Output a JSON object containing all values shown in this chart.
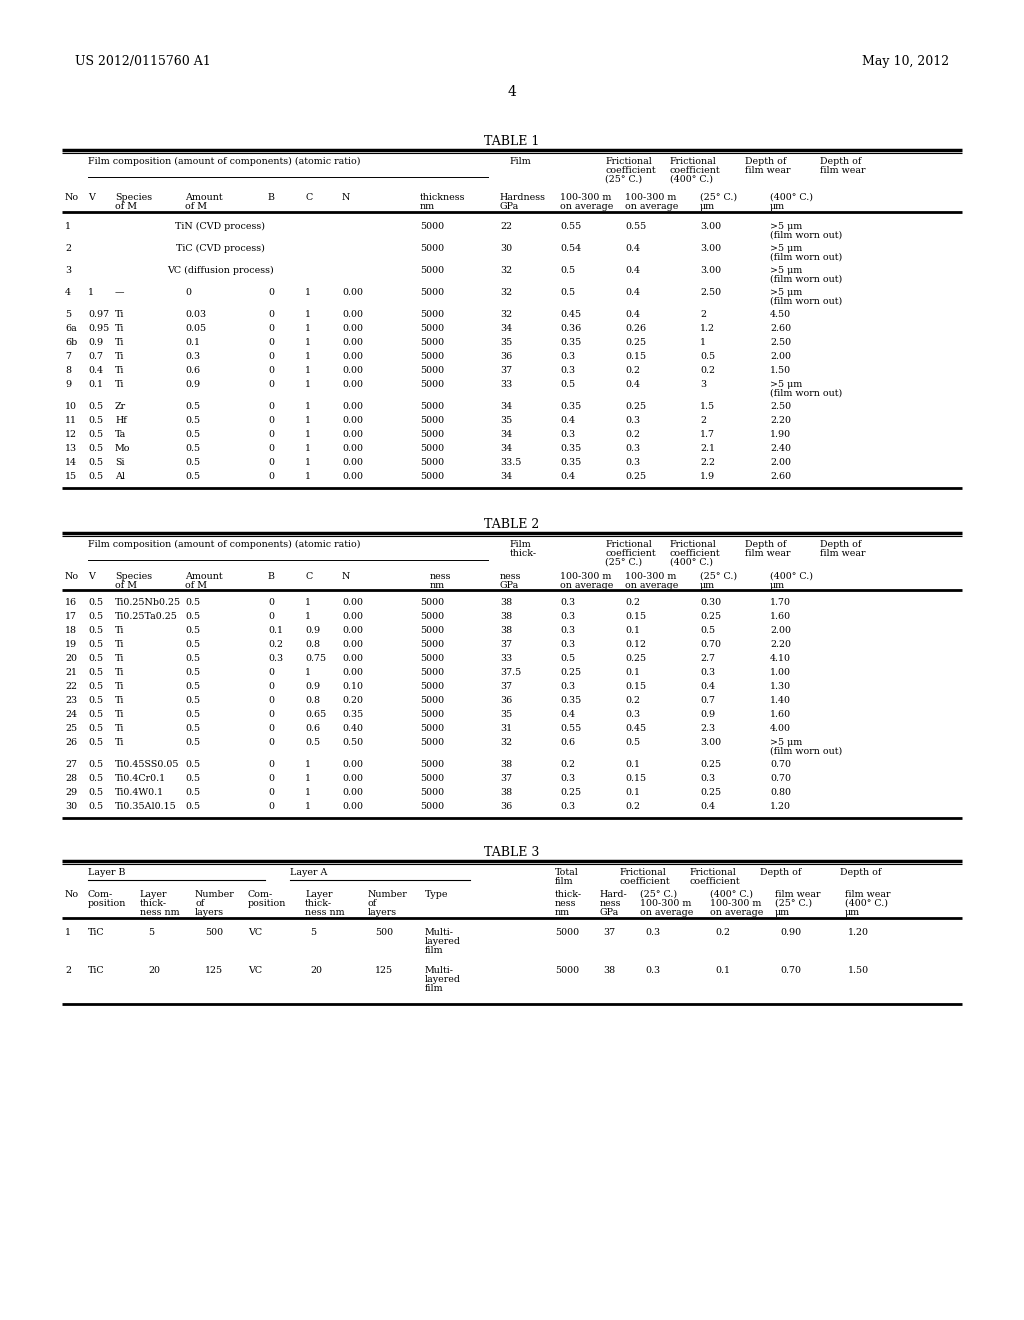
{
  "header_left": "US 2012/0115760 A1",
  "header_right": "May 10, 2012",
  "page_number": "4",
  "background_color": "#ffffff",
  "table1_title": "TABLE 1",
  "table2_title": "TABLE 2",
  "table3_title": "TABLE 3",
  "table1_rows": [
    [
      "1",
      "",
      "TiN (CVD process)",
      "",
      "",
      "",
      "",
      "5000",
      "22",
      "0.55",
      "0.55",
      "3.00",
      ">5 μm",
      "(film worn out)"
    ],
    [
      "2",
      "",
      "TiC (CVD process)",
      "",
      "",
      "",
      "",
      "5000",
      "30",
      "0.54",
      "0.4",
      "3.00",
      ">5 μm",
      "(film worn out)"
    ],
    [
      "3",
      "",
      "VC (diffusion process)",
      "",
      "",
      "",
      "",
      "5000",
      "32",
      "0.5",
      "0.4",
      "3.00",
      ">5 μm",
      "(film worn out)"
    ],
    [
      "4",
      "1",
      "—",
      "0",
      "0",
      "1",
      "0.00",
      "5000",
      "32",
      "0.5",
      "0.4",
      "2.50",
      ">5 μm",
      "(film worn out)"
    ],
    [
      "5",
      "0.97",
      "Ti",
      "0.03",
      "0",
      "1",
      "0.00",
      "5000",
      "32",
      "0.45",
      "0.4",
      "2",
      "4.50",
      ""
    ],
    [
      "6a",
      "0.95",
      "Ti",
      "0.05",
      "0",
      "1",
      "0.00",
      "5000",
      "34",
      "0.36",
      "0.26",
      "1.2",
      "2.60",
      ""
    ],
    [
      "6b",
      "0.9",
      "Ti",
      "0.1",
      "0",
      "1",
      "0.00",
      "5000",
      "35",
      "0.35",
      "0.25",
      "1",
      "2.50",
      ""
    ],
    [
      "7",
      "0.7",
      "Ti",
      "0.3",
      "0",
      "1",
      "0.00",
      "5000",
      "36",
      "0.3",
      "0.15",
      "0.5",
      "2.00",
      ""
    ],
    [
      "8",
      "0.4",
      "Ti",
      "0.6",
      "0",
      "1",
      "0.00",
      "5000",
      "37",
      "0.3",
      "0.2",
      "0.2",
      "1.50",
      ""
    ],
    [
      "9",
      "0.1",
      "Ti",
      "0.9",
      "0",
      "1",
      "0.00",
      "5000",
      "33",
      "0.5",
      "0.4",
      "3",
      ">5 μm",
      "(film worn out)"
    ],
    [
      "10",
      "0.5",
      "Zr",
      "0.5",
      "0",
      "1",
      "0.00",
      "5000",
      "34",
      "0.35",
      "0.25",
      "1.5",
      "2.50",
      ""
    ],
    [
      "11",
      "0.5",
      "Hf",
      "0.5",
      "0",
      "1",
      "0.00",
      "5000",
      "35",
      "0.4",
      "0.3",
      "2",
      "2.20",
      ""
    ],
    [
      "12",
      "0.5",
      "Ta",
      "0.5",
      "0",
      "1",
      "0.00",
      "5000",
      "34",
      "0.3",
      "0.2",
      "1.7",
      "1.90",
      ""
    ],
    [
      "13",
      "0.5",
      "Mo",
      "0.5",
      "0",
      "1",
      "0.00",
      "5000",
      "34",
      "0.35",
      "0.3",
      "2.1",
      "2.40",
      ""
    ],
    [
      "14",
      "0.5",
      "Si",
      "0.5",
      "0",
      "1",
      "0.00",
      "5000",
      "33.5",
      "0.35",
      "0.3",
      "2.2",
      "2.00",
      ""
    ],
    [
      "15",
      "0.5",
      "Al",
      "0.5",
      "0",
      "1",
      "0.00",
      "5000",
      "34",
      "0.4",
      "0.25",
      "1.9",
      "2.60",
      ""
    ]
  ],
  "table2_rows": [
    [
      "16",
      "0.5",
      "Ti0.25Nb0.25",
      "0.5",
      "0",
      "1",
      "0.00",
      "5000",
      "38",
      "0.3",
      "0.2",
      "0.30",
      "1.70",
      ""
    ],
    [
      "17",
      "0.5",
      "Ti0.25Ta0.25",
      "0.5",
      "0",
      "1",
      "0.00",
      "5000",
      "38",
      "0.3",
      "0.15",
      "0.25",
      "1.60",
      ""
    ],
    [
      "18",
      "0.5",
      "Ti",
      "0.5",
      "0.1",
      "0.9",
      "0.00",
      "5000",
      "38",
      "0.3",
      "0.1",
      "0.5",
      "2.00",
      ""
    ],
    [
      "19",
      "0.5",
      "Ti",
      "0.5",
      "0.2",
      "0.8",
      "0.00",
      "5000",
      "37",
      "0.3",
      "0.12",
      "0.70",
      "2.20",
      ""
    ],
    [
      "20",
      "0.5",
      "Ti",
      "0.5",
      "0.3",
      "0.75",
      "0.00",
      "5000",
      "33",
      "0.5",
      "0.25",
      "2.7",
      "4.10",
      ""
    ],
    [
      "21",
      "0.5",
      "Ti",
      "0.5",
      "0",
      "1",
      "0.00",
      "5000",
      "37.5",
      "0.25",
      "0.1",
      "0.3",
      "1.00",
      ""
    ],
    [
      "22",
      "0.5",
      "Ti",
      "0.5",
      "0",
      "0.9",
      "0.10",
      "5000",
      "37",
      "0.3",
      "0.15",
      "0.4",
      "1.30",
      ""
    ],
    [
      "23",
      "0.5",
      "Ti",
      "0.5",
      "0",
      "0.8",
      "0.20",
      "5000",
      "36",
      "0.35",
      "0.2",
      "0.7",
      "1.40",
      ""
    ],
    [
      "24",
      "0.5",
      "Ti",
      "0.5",
      "0",
      "0.65",
      "0.35",
      "5000",
      "35",
      "0.4",
      "0.3",
      "0.9",
      "1.60",
      ""
    ],
    [
      "25",
      "0.5",
      "Ti",
      "0.5",
      "0",
      "0.6",
      "0.40",
      "5000",
      "31",
      "0.55",
      "0.45",
      "2.3",
      "4.00",
      ""
    ],
    [
      "26",
      "0.5",
      "Ti",
      "0.5",
      "0",
      "0.5",
      "0.50",
      "5000",
      "32",
      "0.6",
      "0.5",
      "3.00",
      ">5 μm",
      "(film worn out)"
    ],
    [
      "27",
      "0.5",
      "Ti0.45SS0.05",
      "0.5",
      "0",
      "1",
      "0.00",
      "5000",
      "38",
      "0.2",
      "0.1",
      "0.25",
      "0.70",
      ""
    ],
    [
      "28",
      "0.5",
      "Ti0.4Cr0.1",
      "0.5",
      "0",
      "1",
      "0.00",
      "5000",
      "37",
      "0.3",
      "0.15",
      "0.3",
      "0.70",
      ""
    ],
    [
      "29",
      "0.5",
      "Ti0.4W0.1",
      "0.5",
      "0",
      "1",
      "0.00",
      "5000",
      "38",
      "0.25",
      "0.1",
      "0.25",
      "0.80",
      ""
    ],
    [
      "30",
      "0.5",
      "Ti0.35Al0.15",
      "0.5",
      "0",
      "1",
      "0.00",
      "5000",
      "36",
      "0.3",
      "0.2",
      "0.4",
      "1.20",
      ""
    ]
  ],
  "table3_rows": [
    [
      "1",
      "TiC",
      "5",
      "500",
      "VC",
      "5",
      "500",
      "Multi-",
      "layered",
      "film",
      "5000",
      "37",
      "0.3",
      "0.2",
      "0.90",
      "1.20"
    ],
    [
      "2",
      "TiC",
      "20",
      "125",
      "VC",
      "20",
      "125",
      "Multi-",
      "layered",
      "film",
      "5000",
      "38",
      "0.3",
      "0.1",
      "0.70",
      "1.50"
    ]
  ]
}
